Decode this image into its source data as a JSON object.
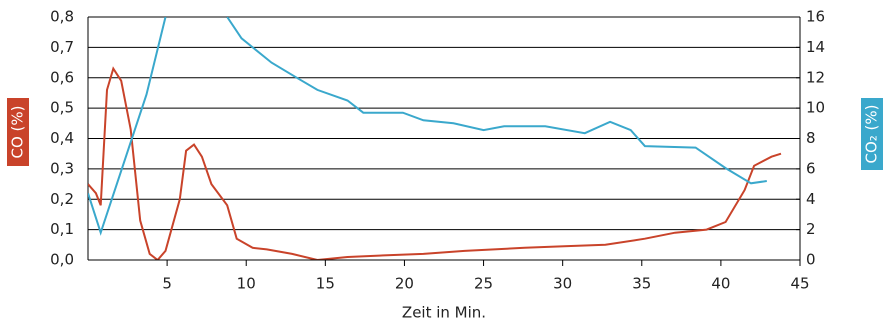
{
  "chart_data": {
    "type": "line",
    "xlabel": "Zeit in Min.",
    "ylabel": "CO (%)",
    "y2label": "CO₂ (%)",
    "ylabel_color": "#c9432a",
    "y2label_color": "#3aa8cc",
    "xlim": [
      0,
      45
    ],
    "xticks": [
      5,
      10,
      15,
      20,
      25,
      30,
      35,
      40,
      45
    ],
    "ylim": [
      0,
      0.8
    ],
    "yticks": [
      {
        "value": 0,
        "label": "0,0"
      },
      {
        "value": 0.1,
        "label": "0,1"
      },
      {
        "value": 0.2,
        "label": "0,2"
      },
      {
        "value": 0.3,
        "label": "0,3"
      },
      {
        "value": 0.4,
        "label": "0,4"
      },
      {
        "value": 0.5,
        "label": "0,5"
      },
      {
        "value": 0.6,
        "label": "0,6"
      },
      {
        "value": 0.7,
        "label": "0,7"
      },
      {
        "value": 0.8,
        "label": "0,8"
      }
    ],
    "y2lim": [
      0,
      16
    ],
    "y2ticks": [
      0,
      2,
      4,
      6,
      8,
      10,
      12,
      14,
      16
    ],
    "grid": true,
    "series": [
      {
        "color": "#c9432a",
        "axis": "y",
        "x": [
          0,
          0.5,
          0.8,
          1.2,
          1.6,
          2.1,
          2.7,
          3.3,
          3.9,
          4.4,
          4.9,
          5.8,
          6.2,
          6.7,
          7.2,
          7.8,
          8.8,
          9.4,
          10.4,
          11.3,
          12.9,
          14.5,
          16.4,
          18.7,
          21.2,
          23.8,
          27.6,
          30.1,
          32.7,
          35.2,
          37.1,
          39.1,
          40.3,
          41.5,
          42.1,
          43.2,
          43.8
        ],
        "values": [
          0.25,
          0.22,
          0.18,
          0.56,
          0.63,
          0.59,
          0.43,
          0.13,
          0.02,
          0.0,
          0.03,
          0.2,
          0.36,
          0.38,
          0.34,
          0.25,
          0.18,
          0.07,
          0.04,
          0.035,
          0.02,
          0.0,
          0.01,
          0.015,
          0.02,
          0.03,
          0.04,
          0.045,
          0.05,
          0.07,
          0.09,
          0.1,
          0.125,
          0.23,
          0.31,
          0.34,
          0.35
        ]
      },
      {
        "color": "#3aa8cc",
        "axis": "y2",
        "x": [
          0,
          0.8,
          3.7,
          4.9,
          6.8,
          8.8,
          9.7,
          11.6,
          13.2,
          14.5,
          16.4,
          17.4,
          19.9,
          21.2,
          23.1,
          25,
          26.3,
          28.9,
          31.4,
          33,
          34.3,
          35.2,
          38.4,
          40.3,
          41.9,
          42.9
        ],
        "values": [
          4.4,
          1.8,
          10.9,
          16,
          null,
          16,
          14.6,
          13.0,
          12.0,
          11.2,
          10.5,
          9.7,
          9.7,
          9.2,
          9.0,
          8.55,
          8.8,
          8.8,
          8.35,
          9.1,
          8.55,
          7.5,
          7.4,
          6.05,
          5.05,
          5.2
        ]
      }
    ]
  }
}
